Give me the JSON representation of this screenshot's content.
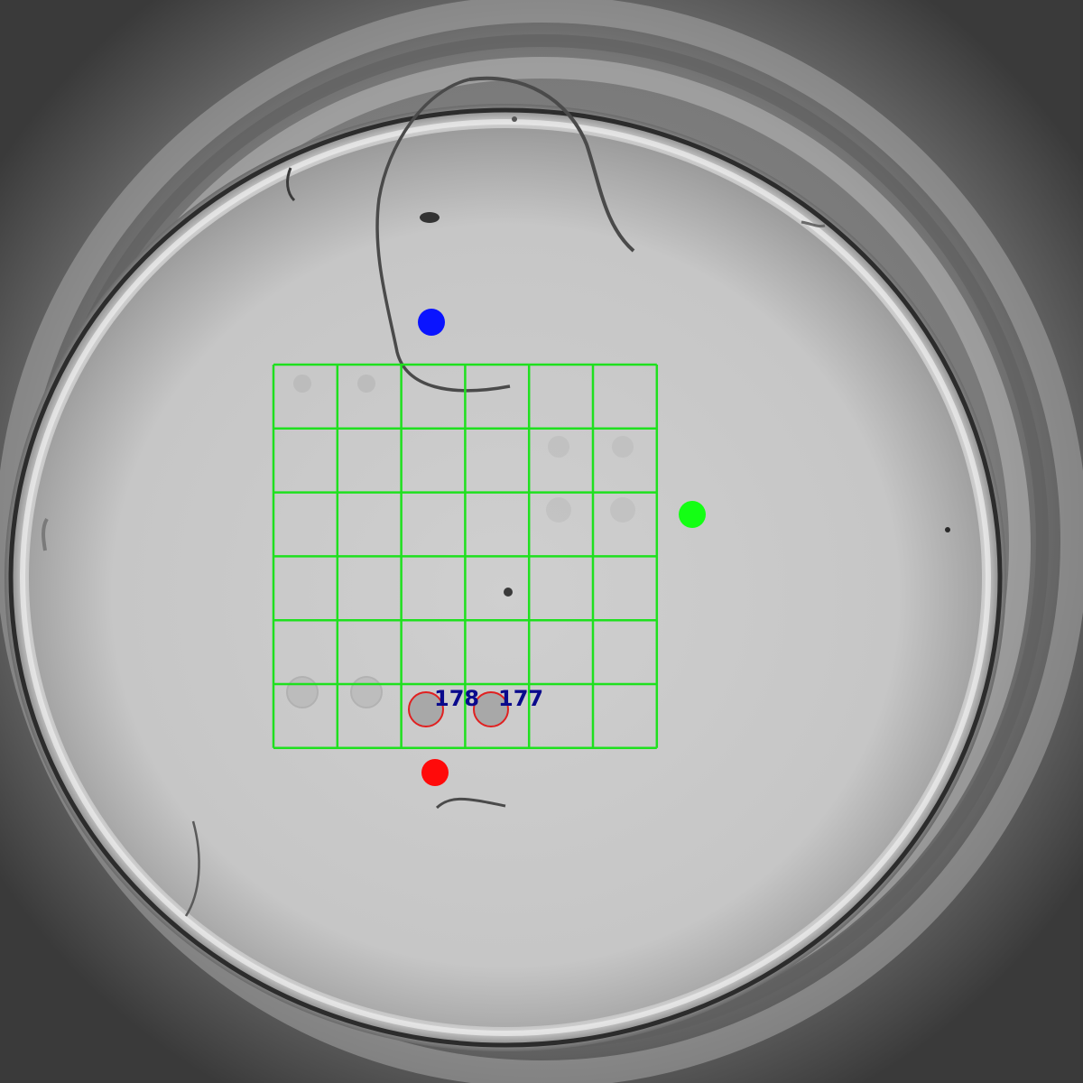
{
  "image": {
    "subject": "dish-well-microscopy"
  },
  "overlay": {
    "grid": {
      "rows": 6,
      "cols": 6,
      "color": "#1ee01e"
    },
    "markers": [
      {
        "name": "top-marker",
        "color": "#0a14ff"
      },
      {
        "name": "right-marker",
        "color": "#14ff14"
      },
      {
        "name": "bottom-marker",
        "color": "#ff0a0a"
      }
    ],
    "detections": [
      {
        "label": "178",
        "ring_color": "#e02020",
        "label_color": "#0a0a8c"
      },
      {
        "label": "177",
        "ring_color": "#e02020",
        "label_color": "#0a0a8c"
      }
    ]
  }
}
